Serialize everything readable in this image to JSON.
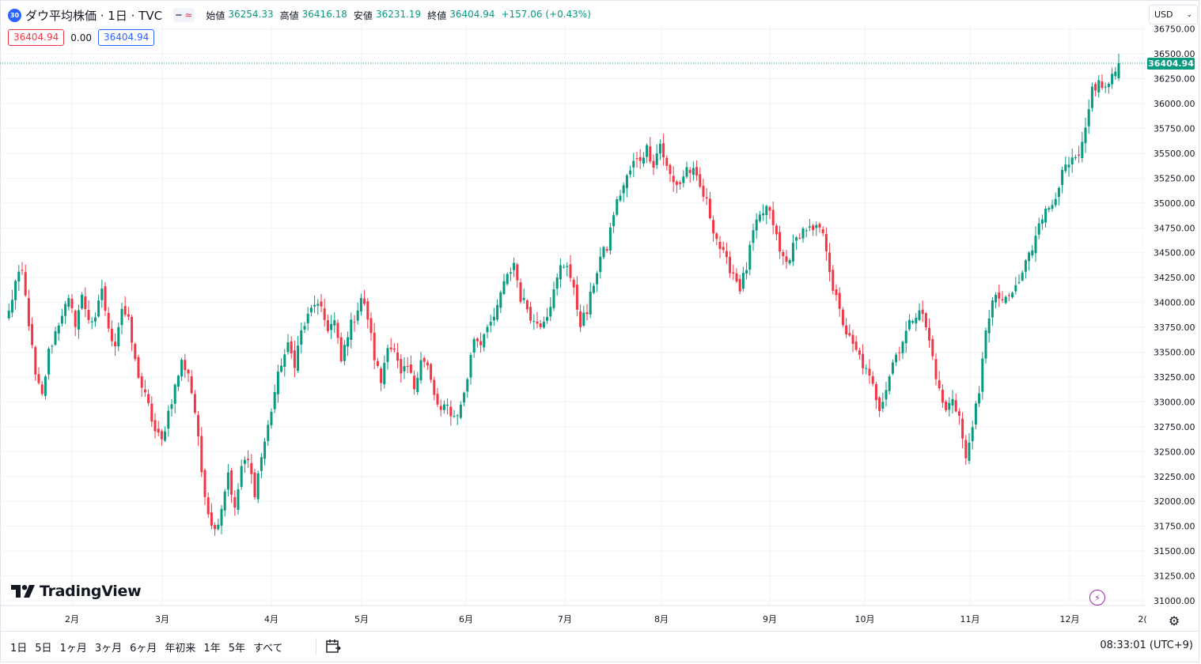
{
  "header": {
    "symbol_badge": "30",
    "title": "ダウ平均株価 · 1日 · TVC",
    "open_label": "始値",
    "open_value": "36254.33",
    "high_label": "高値",
    "high_value": "36416.18",
    "low_label": "安値",
    "low_value": "36231.19",
    "close_label": "終値",
    "close_value": "36404.94",
    "change": "+157.06 (+0.43%)"
  },
  "order_bar": {
    "sell_price": "36404.94",
    "spread": "0.00",
    "buy_price": "36404.94"
  },
  "currency": "USD",
  "last_price_tag": "36404.94",
  "logo_text": "TradingView",
  "bottom_bar": {
    "ranges": [
      "1日",
      "5日",
      "1ヶ月",
      "3ヶ月",
      "6ヶ月",
      "年初来",
      "1年",
      "5年",
      "すべて"
    ],
    "clock": "08:33:01 (UTC+9)"
  },
  "colors": {
    "up": "#089981",
    "down": "#f23645",
    "grid": "#f0f3fa",
    "accent": "#2962ff"
  },
  "chart_data": {
    "type": "candlestick",
    "title": "ダウ平均株価 · 1日 · TVC",
    "y_ticks": [
      31000,
      31250,
      31500,
      31750,
      32000,
      32250,
      32500,
      32750,
      33000,
      33250,
      33500,
      33750,
      34000,
      34250,
      34500,
      34750,
      35000,
      35250,
      35500,
      35750,
      36000,
      36250,
      36500,
      36750
    ],
    "y_tick_labels": [
      "31000.00",
      "31250.00",
      "31500.00",
      "31750.00",
      "32000.00",
      "32250.00",
      "32500.00",
      "32750.00",
      "33000.00",
      "33250.00",
      "33500.00",
      "33750.00",
      "34000.00",
      "34250.00",
      "34500.00",
      "34750.00",
      "35000.00",
      "35250.00",
      "35500.00",
      "35750.00",
      "36000.00",
      "36250.00",
      "36500.00",
      "36750.00"
    ],
    "ylim": [
      30950,
      36800
    ],
    "x_labels": [
      "2月",
      "3月",
      "4月",
      "5月",
      "6月",
      "7月",
      "8月",
      "9月",
      "10月",
      "11月",
      "12月",
      "2("
    ],
    "last_price": 36404.94,
    "anchors": [
      [
        1,
        33900
      ],
      [
        3,
        34200
      ],
      [
        5,
        34300
      ],
      [
        7,
        33800
      ],
      [
        9,
        33250
      ],
      [
        11,
        33050
      ],
      [
        13,
        33500
      ],
      [
        15,
        33700
      ],
      [
        17,
        33900
      ],
      [
        19,
        34000
      ],
      [
        21,
        33800
      ],
      [
        23,
        34050
      ],
      [
        25,
        33850
      ],
      [
        27,
        33800
      ],
      [
        29,
        34150
      ],
      [
        31,
        33700
      ],
      [
        33,
        33600
      ],
      [
        35,
        33950
      ],
      [
        37,
        33800
      ],
      [
        39,
        33400
      ],
      [
        41,
        33150
      ],
      [
        43,
        32950
      ],
      [
        45,
        32700
      ],
      [
        47,
        32600
      ],
      [
        49,
        32900
      ],
      [
        51,
        33150
      ],
      [
        53,
        33400
      ],
      [
        55,
        33300
      ],
      [
        57,
        32900
      ],
      [
        59,
        32300
      ],
      [
        61,
        31900
      ],
      [
        63,
        31700
      ],
      [
        65,
        31950
      ],
      [
        67,
        32300
      ],
      [
        69,
        31900
      ],
      [
        71,
        32350
      ],
      [
        73,
        32400
      ],
      [
        75,
        32100
      ],
      [
        77,
        32450
      ],
      [
        79,
        32750
      ],
      [
        81,
        33100
      ],
      [
        83,
        33400
      ],
      [
        85,
        33550
      ],
      [
        87,
        33400
      ],
      [
        89,
        33700
      ],
      [
        91,
        33850
      ],
      [
        93,
        34000
      ],
      [
        95,
        33900
      ],
      [
        97,
        33750
      ],
      [
        99,
        33800
      ],
      [
        101,
        33400
      ],
      [
        103,
        33700
      ],
      [
        105,
        33850
      ],
      [
        107,
        34050
      ],
      [
        109,
        33850
      ],
      [
        111,
        33450
      ],
      [
        113,
        33200
      ],
      [
        115,
        33600
      ],
      [
        117,
        33500
      ],
      [
        119,
        33250
      ],
      [
        121,
        33350
      ],
      [
        123,
        33150
      ],
      [
        125,
        33450
      ],
      [
        127,
        33350
      ],
      [
        129,
        33050
      ],
      [
        131,
        32900
      ],
      [
        133,
        32950
      ],
      [
        135,
        32850
      ],
      [
        137,
        32950
      ],
      [
        139,
        33250
      ],
      [
        141,
        33650
      ],
      [
        143,
        33600
      ],
      [
        145,
        33800
      ],
      [
        147,
        33800
      ],
      [
        149,
        34100
      ],
      [
        151,
        34250
      ],
      [
        153,
        34400
      ],
      [
        155,
        34050
      ],
      [
        157,
        33950
      ],
      [
        159,
        33800
      ],
      [
        161,
        33800
      ],
      [
        163,
        33900
      ],
      [
        165,
        34100
      ],
      [
        167,
        34350
      ],
      [
        169,
        34400
      ],
      [
        171,
        34100
      ],
      [
        173,
        33800
      ],
      [
        175,
        33900
      ],
      [
        177,
        34200
      ],
      [
        179,
        34450
      ],
      [
        181,
        34550
      ],
      [
        183,
        34900
      ],
      [
        185,
        35100
      ],
      [
        187,
        35250
      ],
      [
        189,
        35400
      ],
      [
        191,
        35450
      ],
      [
        193,
        35550
      ],
      [
        195,
        35400
      ],
      [
        197,
        35600
      ],
      [
        199,
        35350
      ],
      [
        201,
        35200
      ],
      [
        203,
        35200
      ],
      [
        205,
        35350
      ],
      [
        207,
        35300
      ],
      [
        209,
        35150
      ],
      [
        211,
        35000
      ],
      [
        213,
        34750
      ],
      [
        215,
        34550
      ],
      [
        217,
        34400
      ],
      [
        219,
        34300
      ],
      [
        221,
        34150
      ],
      [
        223,
        34350
      ],
      [
        225,
        34700
      ],
      [
        227,
        34850
      ],
      [
        229,
        34950
      ],
      [
        231,
        34800
      ],
      [
        233,
        34500
      ],
      [
        235,
        34400
      ],
      [
        237,
        34550
      ],
      [
        239,
        34700
      ],
      [
        241,
        34750
      ],
      [
        243,
        34700
      ],
      [
        245,
        34750
      ],
      [
        247,
        34550
      ],
      [
        249,
        34150
      ],
      [
        251,
        33900
      ],
      [
        253,
        33700
      ],
      [
        255,
        33550
      ],
      [
        257,
        33450
      ],
      [
        259,
        33300
      ],
      [
        261,
        33150
      ],
      [
        263,
        32950
      ],
      [
        265,
        33150
      ],
      [
        267,
        33400
      ],
      [
        269,
        33550
      ],
      [
        271,
        33700
      ],
      [
        273,
        33850
      ],
      [
        275,
        33950
      ],
      [
        277,
        33750
      ],
      [
        279,
        33450
      ],
      [
        281,
        33100
      ],
      [
        283,
        32900
      ],
      [
        285,
        33050
      ],
      [
        287,
        32850
      ],
      [
        289,
        32400
      ],
      [
        291,
        32800
      ],
      [
        293,
        33050
      ],
      [
        295,
        33750
      ],
      [
        297,
        34000
      ],
      [
        299,
        34050
      ],
      [
        301,
        34000
      ],
      [
        303,
        34100
      ],
      [
        305,
        34200
      ],
      [
        307,
        34400
      ],
      [
        309,
        34550
      ],
      [
        311,
        34850
      ],
      [
        313,
        34900
      ],
      [
        315,
        35000
      ],
      [
        317,
        35200
      ],
      [
        319,
        35350
      ],
      [
        321,
        35400
      ],
      [
        323,
        35450
      ],
      [
        325,
        35700
      ],
      [
        327,
        36150
      ],
      [
        329,
        36200
      ],
      [
        331,
        36150
      ],
      [
        333,
        36250
      ],
      [
        335,
        36400
      ]
    ]
  }
}
